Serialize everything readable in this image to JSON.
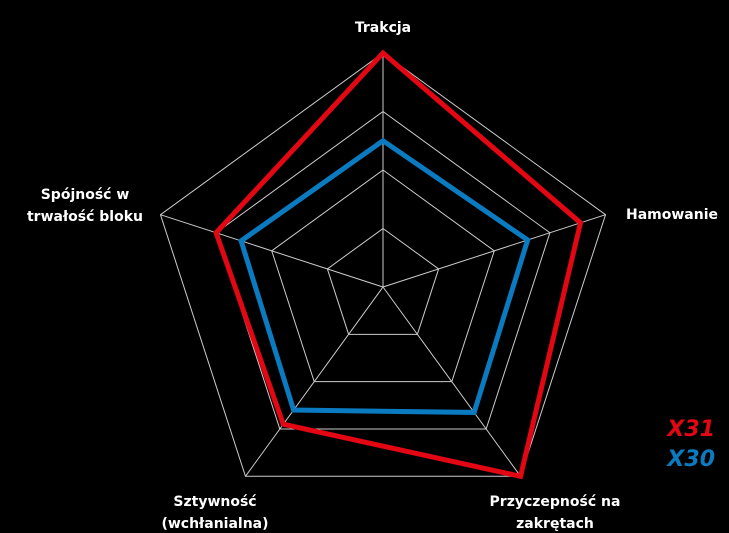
{
  "chart_data": {
    "type": "radar",
    "categories": [
      [
        "Trakcja"
      ],
      [
        "Hamowanie"
      ],
      [
        "Przyczepność na",
        "zakrętach"
      ],
      [
        "Sztywność",
        "(wchłanialna)"
      ],
      [
        "Spójność w",
        "trwałość bloku"
      ]
    ],
    "rlim": [
      0,
      4
    ],
    "rticks": [
      1,
      2,
      3,
      4
    ],
    "grid": true,
    "legend": "bottom-right",
    "series": [
      {
        "name": "X31",
        "color": "#e30613",
        "values": [
          4,
          3.55,
          4,
          2.9,
          3.0
        ]
      },
      {
        "name": "X30",
        "color": "#0a7bc1",
        "values": [
          2.5,
          2.6,
          2.65,
          2.6,
          2.55
        ]
      }
    ]
  }
}
